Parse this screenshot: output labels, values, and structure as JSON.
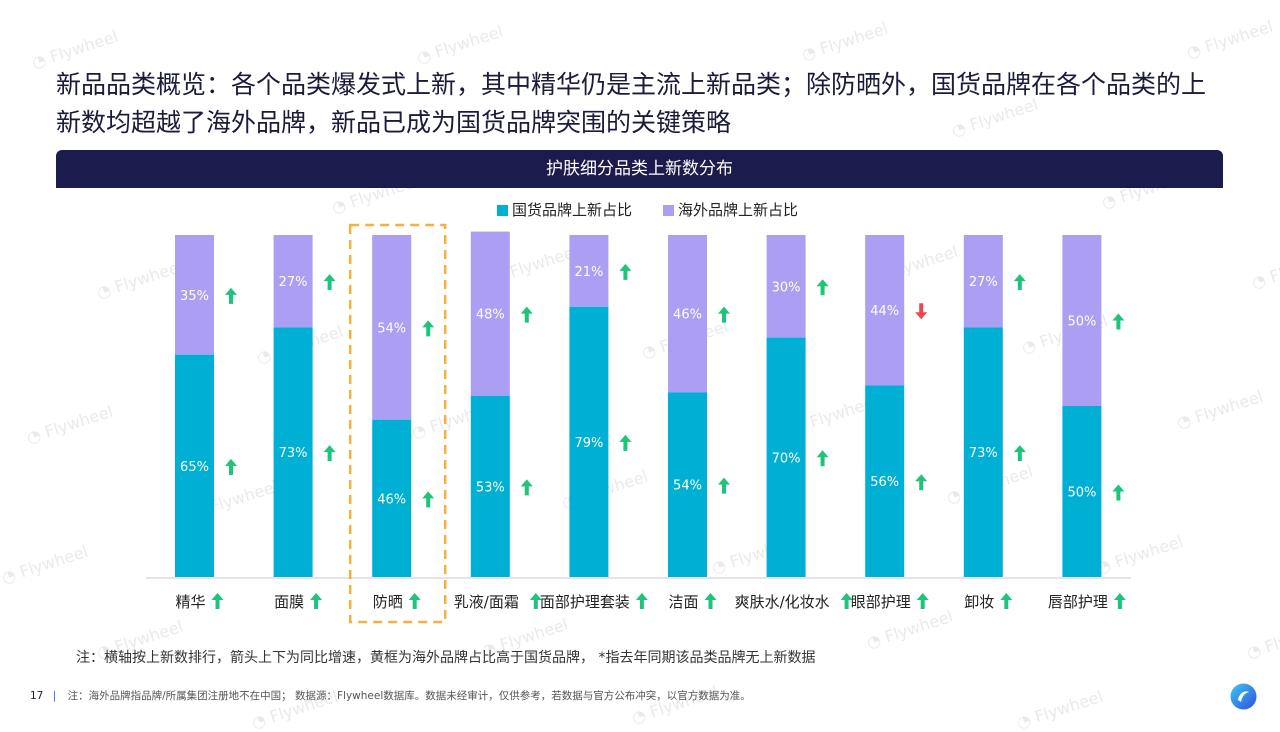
{
  "headline": "新品品类概览：各个品类爆发式上新，其中精华仍是主流上新品类；除防晒外，国货品牌在各个品类的上新数均超越了海外品牌，新品已成为国货品牌突围的关键策略",
  "watermark": "Flywheel",
  "colors": {
    "domestic": "#00b0d4",
    "overseas": "#ac9ef3",
    "up": "#1dc47a",
    "down": "#f04848",
    "highlight": "#f5b042",
    "header": "#1c1b4d"
  },
  "chart_data": {
    "type": "bar",
    "stacked": true,
    "title": "护肤细分品类上新数分布",
    "ylim": [
      0,
      100
    ],
    "legend_position": "top-center",
    "categories": [
      "精华",
      "面膜",
      "防晒",
      "乳液/面霜",
      "面部护理套装",
      "洁面",
      "爽肤水/化妆水",
      "眼部护理",
      "卸妆",
      "唇部护理"
    ],
    "series": [
      {
        "name": "国货品牌上新占比",
        "values": [
          65,
          73,
          46,
          53,
          79,
          54,
          70,
          56,
          73,
          50
        ],
        "labels": [
          "65%",
          "73%",
          "46%",
          "53%",
          "79%",
          "54%",
          "70%",
          "56%",
          "73%",
          "50%"
        ],
        "trend": [
          "up",
          "up",
          "up",
          "up",
          "up",
          "up",
          "up",
          "up",
          "up",
          "up"
        ]
      },
      {
        "name": "海外品牌上新占比",
        "values": [
          35,
          27,
          54,
          48,
          21,
          46,
          30,
          44,
          27,
          50
        ],
        "labels": [
          "35%",
          "27%",
          "54%",
          "48%",
          "21%",
          "46%",
          "30%",
          "44%",
          "27%",
          "50%"
        ],
        "trend": [
          "up",
          "up",
          "up",
          "up",
          "up",
          "up",
          "up",
          "down",
          "up",
          "up"
        ]
      }
    ],
    "category_trend": [
      "up",
      "up",
      "up",
      "up",
      "up",
      "up",
      "up",
      "up",
      "up",
      "up"
    ],
    "highlighted_category": "防晒"
  },
  "note": "注：横轴按上新数排行，箭头上下为同比增速，黄框为海外品牌占比高于国货品牌， *指去年同期该品类品牌无上新数据",
  "footer": {
    "page": "17",
    "sep": "|",
    "text": "注：海外品牌指品牌/所属集团注册地不在中国； 数据源：Flywheel数据库。数据未经审计，仅供参考，若数据与官方公布冲突，以官方数据为准。"
  }
}
